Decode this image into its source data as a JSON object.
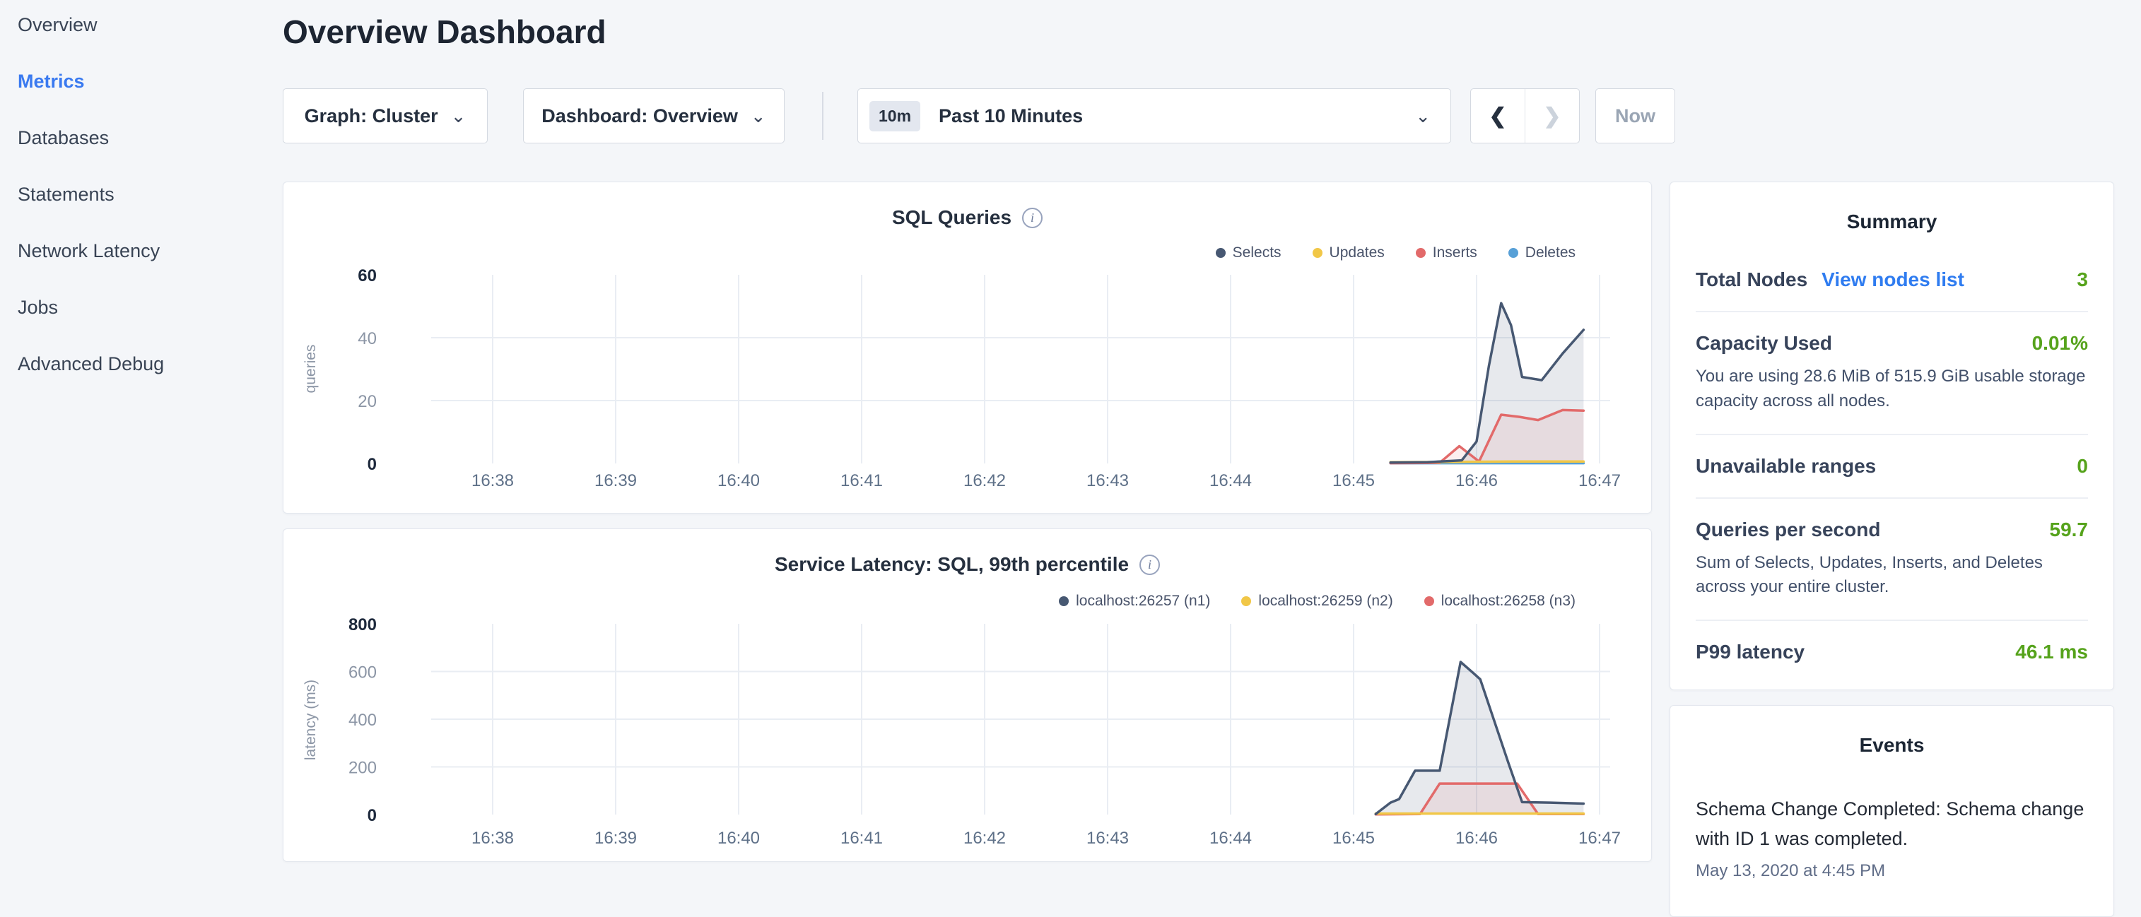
{
  "sidebar": {
    "items": [
      {
        "label": "Overview",
        "slug": "overview",
        "active": false
      },
      {
        "label": "Metrics",
        "slug": "metrics",
        "active": true
      },
      {
        "label": "Databases",
        "slug": "databases",
        "active": false
      },
      {
        "label": "Statements",
        "slug": "statements",
        "active": false
      },
      {
        "label": "Network Latency",
        "slug": "network-latency",
        "active": false
      },
      {
        "label": "Jobs",
        "slug": "jobs",
        "active": false
      },
      {
        "label": "Advanced Debug",
        "slug": "advanced-debug",
        "active": false
      }
    ]
  },
  "header": {
    "title": "Overview Dashboard"
  },
  "controls": {
    "graph_label": "Graph: Cluster",
    "dashboard_label": "Dashboard: Overview",
    "chevron_down_icon": "⌄",
    "time_badge": "10m",
    "time_label": "Past 10 Minutes",
    "prev_icon": "❮",
    "next_icon": "❯",
    "now_label": "Now"
  },
  "colors": {
    "accent_blue": "#3a7af0",
    "link_blue": "#2f7cf0",
    "value_green": "#56a31c",
    "navy_series": "#475872",
    "yellow_series": "#f1c747",
    "red_series": "#e26a6a",
    "blue_series": "#57a0d7"
  },
  "chart_data": [
    {
      "type": "area",
      "title": "SQL Queries",
      "info_icon": "i",
      "xlabel": "",
      "ylabel": "queries",
      "ylim": [
        0,
        60
      ],
      "yticks": [
        0,
        20,
        40,
        60
      ],
      "grid": true,
      "legend_position": "top-right",
      "x_ticks": [
        {
          "label": "16:38",
          "minute": 38
        },
        {
          "label": "16:39",
          "minute": 39
        },
        {
          "label": "16:40",
          "minute": 40
        },
        {
          "label": "16:41",
          "minute": 41
        },
        {
          "label": "16:42",
          "minute": 42
        },
        {
          "label": "16:43",
          "minute": 43
        },
        {
          "label": "16:44",
          "minute": 44
        },
        {
          "label": "16:45",
          "minute": 45
        },
        {
          "label": "16:46",
          "minute": 46
        },
        {
          "label": "16:47",
          "minute": 47
        }
      ],
      "series": [
        {
          "name": "Selects",
          "color": "#475872",
          "fill": true,
          "fill_opacity": 0.13,
          "points": [
            [
              45.3,
              0.3
            ],
            [
              45.6,
              0.4
            ],
            [
              45.88,
              1
            ],
            [
              46.0,
              7
            ],
            [
              46.1,
              31
            ],
            [
              46.2,
              51
            ],
            [
              46.28,
              44
            ],
            [
              46.37,
              27.5
            ],
            [
              46.53,
              26.5
            ],
            [
              46.7,
              35
            ],
            [
              46.87,
              42.5
            ]
          ]
        },
        {
          "name": "Updates",
          "color": "#f1c747",
          "fill": false,
          "fill_opacity": 0,
          "points": [
            [
              45.3,
              0.4
            ],
            [
              45.9,
              0.5
            ],
            [
              46.3,
              0.6
            ],
            [
              46.87,
              0.6
            ]
          ]
        },
        {
          "name": "Inserts",
          "color": "#e26a6a",
          "fill": true,
          "fill_opacity": 0.11,
          "points": [
            [
              45.3,
              0.1
            ],
            [
              45.7,
              0.2
            ],
            [
              45.86,
              5.5
            ],
            [
              46.02,
              0.6
            ],
            [
              46.2,
              15.5
            ],
            [
              46.35,
              14.8
            ],
            [
              46.5,
              13.8
            ],
            [
              46.7,
              17
            ],
            [
              46.87,
              16.8
            ]
          ]
        },
        {
          "name": "Deletes",
          "color": "#57a0d7",
          "fill": false,
          "fill_opacity": 0,
          "points": [
            [
              45.3,
              0.1
            ],
            [
              46.87,
              0.1
            ]
          ]
        }
      ]
    },
    {
      "type": "area",
      "title": "Service Latency: SQL, 99th percentile",
      "info_icon": "i",
      "xlabel": "",
      "ylabel": "latency (ms)",
      "ylim": [
        0,
        800
      ],
      "yticks": [
        0,
        200,
        400,
        600,
        800
      ],
      "grid": true,
      "legend_position": "top-right",
      "x_ticks": [
        {
          "label": "16:38",
          "minute": 38
        },
        {
          "label": "16:39",
          "minute": 39
        },
        {
          "label": "16:40",
          "minute": 40
        },
        {
          "label": "16:41",
          "minute": 41
        },
        {
          "label": "16:42",
          "minute": 42
        },
        {
          "label": "16:43",
          "minute": 43
        },
        {
          "label": "16:44",
          "minute": 44
        },
        {
          "label": "16:45",
          "minute": 45
        },
        {
          "label": "16:46",
          "minute": 46
        },
        {
          "label": "16:47",
          "minute": 47
        }
      ],
      "series": [
        {
          "name": "localhost:26257 (n1)",
          "color": "#475872",
          "fill": true,
          "fill_opacity": 0.13,
          "points": [
            [
              45.18,
              2
            ],
            [
              45.3,
              50
            ],
            [
              45.37,
              65
            ],
            [
              45.5,
              184
            ],
            [
              45.7,
              184
            ],
            [
              45.87,
              640
            ],
            [
              45.97,
              595
            ],
            [
              46.03,
              567
            ],
            [
              46.26,
              215
            ],
            [
              46.37,
              52
            ],
            [
              46.6,
              50
            ],
            [
              46.87,
              46
            ]
          ]
        },
        {
          "name": "localhost:26259 (n2)",
          "color": "#f1c747",
          "fill": false,
          "fill_opacity": 0,
          "points": [
            [
              45.18,
              4
            ],
            [
              46.0,
              4
            ],
            [
              46.87,
              4
            ]
          ]
        },
        {
          "name": "localhost:26258 (n3)",
          "color": "#e26a6a",
          "fill": true,
          "fill_opacity": 0.11,
          "points": [
            [
              45.18,
              1
            ],
            [
              45.54,
              2
            ],
            [
              45.7,
              130
            ],
            [
              46.33,
              130
            ],
            [
              46.5,
              2
            ],
            [
              46.87,
              2
            ]
          ]
        }
      ]
    }
  ],
  "summary": {
    "title": "Summary",
    "rows": [
      {
        "label": "Total Nodes",
        "link": "View nodes list",
        "value": "3",
        "subtext": ""
      },
      {
        "label": "Capacity Used",
        "link": "",
        "value": "0.01%",
        "subtext": "You are using 28.6 MiB of 515.9 GiB usable storage capacity across all nodes."
      },
      {
        "label": "Unavailable ranges",
        "link": "",
        "value": "0",
        "subtext": ""
      },
      {
        "label": "Queries per second",
        "link": "",
        "value": "59.7",
        "subtext": "Sum of Selects, Updates, Inserts, and Deletes across your entire cluster."
      },
      {
        "label": "P99 latency",
        "link": "",
        "value": "46.1 ms",
        "subtext": ""
      }
    ]
  },
  "events": {
    "title": "Events",
    "items": [
      {
        "text": "Schema Change Completed: Schema change with ID 1 was completed.",
        "time": "May 13, 2020 at 4:45 PM"
      }
    ]
  }
}
